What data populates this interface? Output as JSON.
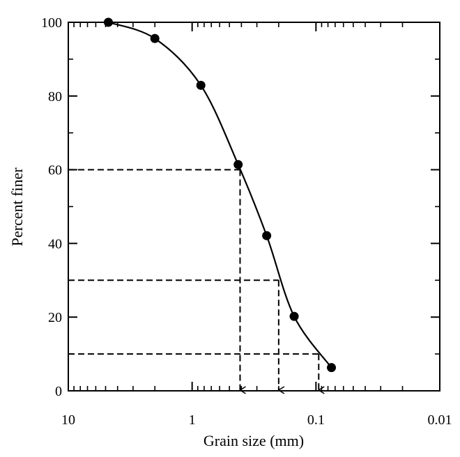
{
  "chart_data": {
    "type": "scatter",
    "x_scale": "log",
    "x_reversed": true,
    "xlim": [
      10,
      0.01
    ],
    "ylim": [
      0,
      100
    ],
    "xlabel": "Grain size (mm)",
    "ylabel": "Percent finer",
    "x_ticks": [
      {
        "value": 10,
        "label": "10"
      },
      {
        "value": 1,
        "label": "1"
      },
      {
        "value": 0.1,
        "label": "0.1"
      },
      {
        "value": 0.01,
        "label": "0.01"
      }
    ],
    "y_ticks": [
      {
        "value": 0,
        "label": "0"
      },
      {
        "value": 20,
        "label": "20"
      },
      {
        "value": 40,
        "label": "40"
      },
      {
        "value": 60,
        "label": "60"
      },
      {
        "value": 80,
        "label": "80"
      },
      {
        "value": 100,
        "label": "100"
      }
    ],
    "y_minor_ticks": [
      10,
      30,
      50,
      70,
      90
    ],
    "points": [
      {
        "x": 4.75,
        "y": 100
      },
      {
        "x": 2.0,
        "y": 95.6
      },
      {
        "x": 0.85,
        "y": 82.9
      },
      {
        "x": 0.425,
        "y": 61.4
      },
      {
        "x": 0.25,
        "y": 42.1
      },
      {
        "x": 0.15,
        "y": 20.2
      },
      {
        "x": 0.075,
        "y": 6.3
      }
    ],
    "reference_lines": [
      {
        "percent": 60,
        "size": 0.41
      },
      {
        "percent": 30,
        "size": 0.2
      },
      {
        "percent": 10,
        "size": 0.095
      }
    ],
    "grid": false,
    "legend": "none"
  }
}
